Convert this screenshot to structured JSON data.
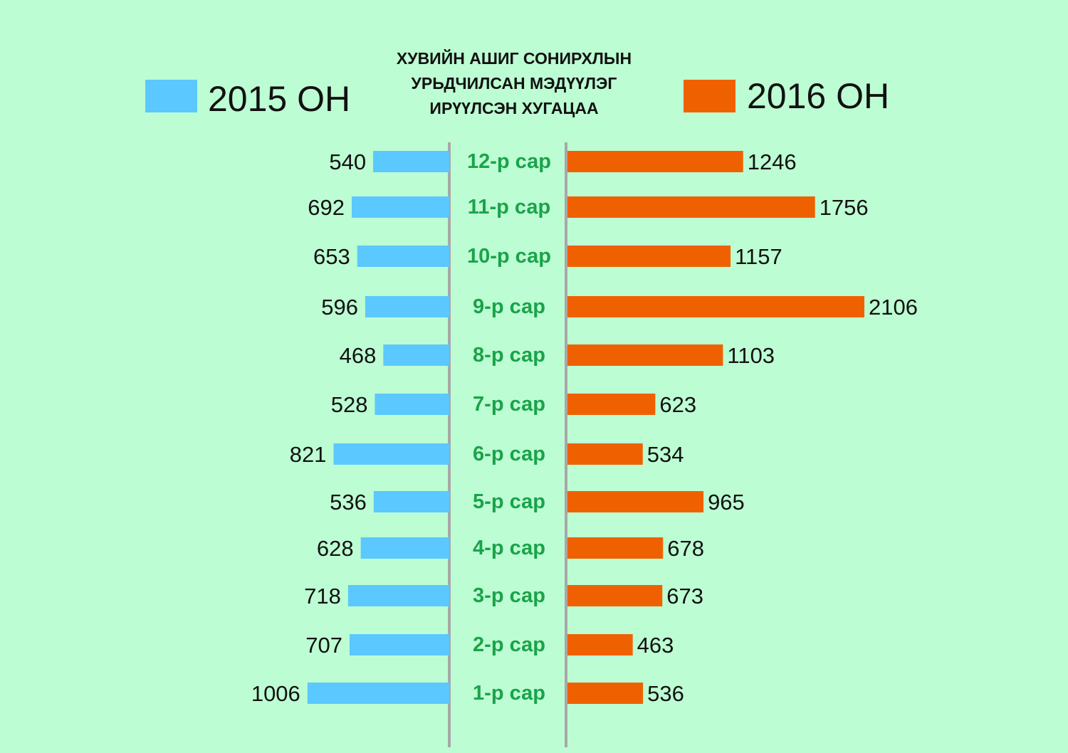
{
  "chart_data": {
    "type": "bar",
    "title": [
      "ХУВИЙН АШИГ СОНИРХЛЫН",
      "УРЬДЧИЛСАН МЭДҮҮЛЭГ",
      "ИРҮҮЛСЭН ХУГАЦАА"
    ],
    "orientation": "horizontal-diverging",
    "categories": [
      "12-р сар",
      "11-р сар",
      "10-р сар",
      "9-р сар",
      "8-р сар",
      "7-р сар",
      "6-р сар",
      "5-р сар",
      "4-р сар",
      "3-р сар",
      "2-р сар",
      "1-р сар"
    ],
    "series": [
      {
        "name": "2015 ОН",
        "color": "#5bc8ff",
        "side": "left",
        "values": [
          540,
          692,
          653,
          596,
          468,
          528,
          821,
          536,
          628,
          718,
          707,
          1006
        ]
      },
      {
        "name": "2016 ОН",
        "color": "#ef6100",
        "side": "right",
        "values": [
          1246,
          1756,
          1157,
          2106,
          1103,
          623,
          534,
          965,
          678,
          673,
          463,
          536
        ]
      }
    ],
    "legend_placement": "top",
    "grid": false,
    "colors": {
      "background": "#bdfdd3",
      "month_label": "#1aa34a",
      "divider": "#a8a8a8"
    }
  }
}
